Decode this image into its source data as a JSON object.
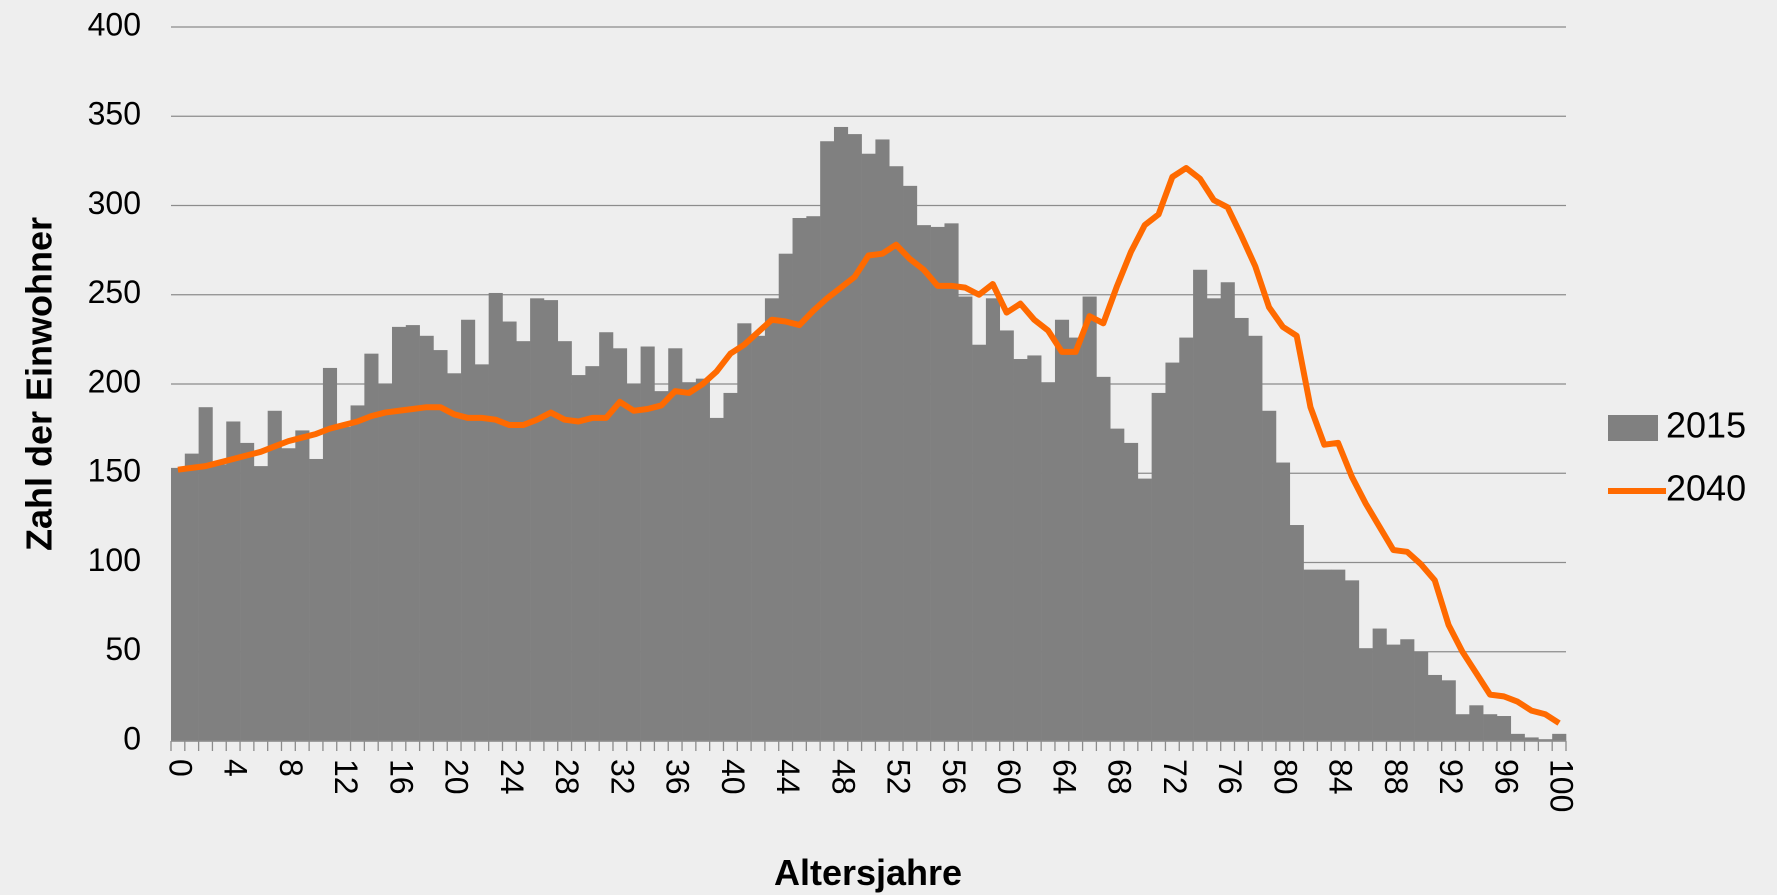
{
  "chart_data": {
    "type": "bar-line",
    "x_label": "Altersjahre",
    "y_label": "Zahl der Einwohner",
    "categories": [
      "0",
      null,
      null,
      null,
      "4",
      null,
      null,
      null,
      "8",
      null,
      null,
      null,
      "12",
      null,
      null,
      null,
      "16",
      null,
      null,
      null,
      "20",
      null,
      null,
      null,
      "24",
      null,
      null,
      null,
      "28",
      null,
      null,
      null,
      "32",
      null,
      null,
      null,
      "36",
      null,
      null,
      null,
      "40",
      null,
      null,
      null,
      "44",
      null,
      null,
      null,
      "48",
      null,
      null,
      null,
      "52",
      null,
      null,
      null,
      "56",
      null,
      null,
      null,
      "60",
      null,
      null,
      null,
      "64",
      null,
      null,
      null,
      "68",
      null,
      null,
      null,
      "72",
      null,
      null,
      null,
      "76",
      null,
      null,
      null,
      "80",
      null,
      null,
      null,
      "84",
      null,
      null,
      null,
      "88",
      null,
      null,
      null,
      "92",
      null,
      null,
      null,
      "96",
      null,
      null,
      null,
      "100"
    ],
    "series": [
      {
        "name": "2015",
        "type": "bar",
        "color": "#808080",
        "values": [
          153,
          161,
          187,
          155,
          179,
          167,
          154,
          185,
          164,
          174,
          158,
          209,
          176,
          188,
          217,
          200,
          232,
          233,
          227,
          219,
          206,
          236,
          211,
          251,
          235,
          224,
          248,
          247,
          224,
          205,
          210,
          229,
          220,
          200,
          221,
          196,
          220,
          201,
          203,
          181,
          195,
          234,
          227,
          248,
          273,
          293,
          294,
          336,
          344,
          340,
          329,
          337,
          322,
          311,
          289,
          288,
          290,
          249,
          222,
          248,
          230,
          214,
          216,
          201,
          236,
          226,
          249,
          204,
          175,
          167,
          147,
          195,
          212,
          226,
          264,
          248,
          257,
          237,
          227,
          185,
          156,
          121,
          96,
          96,
          96,
          90,
          52,
          63,
          54,
          57,
          50,
          37,
          34,
          15,
          20,
          15,
          14,
          4,
          2,
          1,
          4
        ]
      },
      {
        "name": "2040",
        "type": "line",
        "color": "#ff6a00",
        "values": [
          152,
          153,
          154,
          156,
          158,
          160,
          162,
          165,
          168,
          170,
          172,
          175,
          177,
          179,
          182,
          184,
          185,
          186,
          187,
          187,
          183,
          181,
          181,
          180,
          177,
          177,
          180,
          184,
          180,
          179,
          181,
          181,
          190,
          185,
          186,
          188,
          196,
          195,
          200,
          207,
          217,
          222,
          229,
          236,
          235,
          233,
          241,
          248,
          254,
          260,
          272,
          273,
          278,
          270,
          264,
          255,
          255,
          254,
          250,
          256,
          240,
          245,
          236,
          230,
          218,
          218,
          238,
          234,
          255,
          274,
          289,
          295,
          316,
          321,
          315,
          303,
          299,
          283,
          266,
          243,
          232,
          227,
          187,
          166,
          167,
          148,
          133,
          120,
          107,
          106,
          99,
          90,
          65,
          50,
          38,
          26,
          25,
          22,
          17,
          15,
          10
        ]
      }
    ],
    "ylim": [
      0,
      400
    ],
    "yticks": [
      0,
      50,
      100,
      150,
      200,
      250,
      300,
      350,
      400
    ],
    "grid": true,
    "legend": "right"
  }
}
